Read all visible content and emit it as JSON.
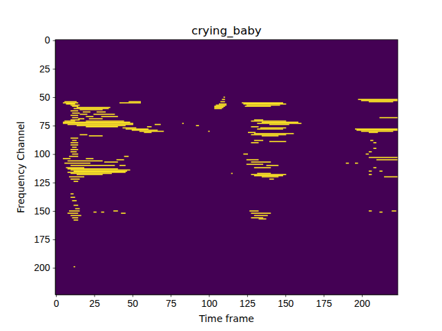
{
  "chart_data": {
    "type": "heatmap",
    "title": "crying_baby",
    "x_label": "Time frame",
    "y_label": "Frequency Channel",
    "xlim": [
      -0.5,
      223.5
    ],
    "ylim": [
      223.5,
      -0.5
    ],
    "xticks": [
      0,
      25,
      50,
      75,
      100,
      125,
      150,
      175,
      200
    ],
    "yticks": [
      0,
      25,
      50,
      75,
      100,
      125,
      150,
      175,
      200
    ],
    "color": "#fde725",
    "cells": [
      [
        54,
        6,
        13
      ],
      [
        55,
        5,
        14
      ],
      [
        56,
        7,
        12
      ],
      [
        55,
        42,
        55
      ],
      [
        54,
        48,
        55
      ],
      [
        59,
        14,
        35
      ],
      [
        60,
        12,
        34
      ],
      [
        61,
        16,
        30
      ],
      [
        63,
        18,
        22
      ],
      [
        63,
        27,
        32
      ],
      [
        65,
        16,
        20
      ],
      [
        65,
        25,
        38
      ],
      [
        67,
        20,
        24
      ],
      [
        67,
        30,
        40
      ],
      [
        69,
        15,
        18
      ],
      [
        69,
        22,
        30
      ],
      [
        71,
        6,
        12
      ],
      [
        71,
        20,
        44
      ],
      [
        72,
        5,
        48
      ],
      [
        73,
        5,
        50
      ],
      [
        74,
        8,
        50
      ],
      [
        75,
        14,
        45
      ],
      [
        76,
        20,
        40
      ],
      [
        77,
        44,
        52
      ],
      [
        78,
        46,
        60
      ],
      [
        79,
        50,
        66
      ],
      [
        80,
        55,
        70
      ],
      [
        81,
        58,
        62
      ],
      [
        83,
        16,
        20
      ],
      [
        84,
        22,
        30
      ],
      [
        86,
        10,
        14
      ],
      [
        88,
        11,
        13
      ],
      [
        90,
        10,
        14
      ],
      [
        92,
        10,
        14
      ],
      [
        94,
        11,
        13
      ],
      [
        96,
        10,
        14
      ],
      [
        98,
        10,
        13
      ],
      [
        100,
        11,
        14
      ],
      [
        102,
        9,
        14
      ],
      [
        104,
        5,
        9
      ],
      [
        104,
        20,
        24
      ],
      [
        106,
        8,
        30
      ],
      [
        107,
        32,
        40
      ],
      [
        108,
        6,
        22
      ],
      [
        110,
        10,
        38
      ],
      [
        110,
        42,
        45
      ],
      [
        112,
        7,
        18
      ],
      [
        113,
        8,
        40
      ],
      [
        114,
        10,
        48
      ],
      [
        115,
        12,
        46
      ],
      [
        116,
        8,
        45
      ],
      [
        117,
        10,
        36
      ],
      [
        118,
        14,
        30
      ],
      [
        120,
        9,
        18
      ],
      [
        122,
        10,
        15
      ],
      [
        124,
        12,
        14
      ],
      [
        57,
        10,
        15
      ],
      [
        58,
        11,
        14
      ],
      [
        62,
        10,
        14
      ],
      [
        64,
        11,
        15
      ],
      [
        66,
        10,
        14
      ],
      [
        68,
        11,
        14
      ],
      [
        70,
        10,
        15
      ],
      [
        135,
        10,
        11
      ],
      [
        138,
        10,
        12
      ],
      [
        141,
        11,
        13
      ],
      [
        145,
        12,
        14
      ],
      [
        148,
        13,
        15
      ],
      [
        150,
        9,
        15
      ],
      [
        152,
        8,
        14
      ],
      [
        154,
        10,
        16
      ],
      [
        156,
        11,
        14
      ],
      [
        158,
        12,
        14
      ],
      [
        151,
        25,
        26
      ],
      [
        151,
        30,
        31
      ],
      [
        150,
        38,
        40
      ],
      [
        152,
        43,
        45
      ],
      [
        199,
        12,
        12
      ],
      [
        102,
        45,
        47
      ],
      [
        105,
        40,
        44
      ],
      [
        76,
        60,
        62
      ],
      [
        74,
        65,
        68
      ],
      [
        50,
        110,
        110
      ],
      [
        52,
        109,
        110
      ],
      [
        54,
        108,
        110
      ],
      [
        56,
        107,
        111
      ],
      [
        57,
        105,
        111
      ],
      [
        58,
        104,
        110
      ],
      [
        59,
        104,
        109
      ],
      [
        60,
        104,
        108
      ],
      [
        73,
        83,
        83
      ],
      [
        75,
        92,
        93
      ],
      [
        80,
        100,
        100
      ],
      [
        117,
        115,
        115
      ],
      [
        55,
        122,
        148
      ],
      [
        56,
        123,
        150
      ],
      [
        57,
        125,
        146
      ],
      [
        58,
        124,
        140
      ],
      [
        70,
        130,
        135
      ],
      [
        71,
        128,
        150
      ],
      [
        72,
        135,
        158
      ],
      [
        73,
        132,
        160
      ],
      [
        74,
        140,
        152
      ],
      [
        76,
        128,
        132
      ],
      [
        77,
        134,
        150
      ],
      [
        78,
        132,
        148
      ],
      [
        81,
        126,
        130
      ],
      [
        82,
        130,
        155
      ],
      [
        83,
        128,
        150
      ],
      [
        84,
        135,
        145
      ],
      [
        88,
        130,
        135
      ],
      [
        90,
        128,
        132
      ],
      [
        89,
        140,
        150
      ],
      [
        100,
        123,
        125
      ],
      [
        105,
        125,
        132
      ],
      [
        107,
        128,
        140
      ],
      [
        109,
        125,
        135
      ],
      [
        110,
        138,
        145
      ],
      [
        112,
        130,
        140
      ],
      [
        117,
        132,
        140
      ],
      [
        118,
        128,
        150
      ],
      [
        119,
        130,
        148
      ],
      [
        120,
        135,
        145
      ],
      [
        122,
        140,
        142
      ],
      [
        150,
        127,
        132
      ],
      [
        152,
        128,
        140
      ],
      [
        154,
        130,
        138
      ],
      [
        156,
        128,
        135
      ],
      [
        157,
        133,
        137
      ],
      [
        52,
        198,
        223
      ],
      [
        53,
        200,
        223
      ],
      [
        54,
        205,
        220
      ],
      [
        68,
        212,
        223
      ],
      [
        78,
        196,
        223
      ],
      [
        79,
        197,
        223
      ],
      [
        80,
        200,
        220
      ],
      [
        81,
        205,
        210
      ],
      [
        88,
        206,
        207
      ],
      [
        90,
        208,
        209
      ],
      [
        95,
        208,
        209
      ],
      [
        98,
        205,
        206
      ],
      [
        103,
        205,
        223
      ],
      [
        105,
        210,
        223
      ],
      [
        108,
        190,
        191
      ],
      [
        108,
        196,
        197
      ],
      [
        112,
        208,
        209
      ],
      [
        115,
        205,
        206
      ],
      [
        115,
        212,
        213
      ],
      [
        120,
        215,
        223
      ],
      [
        118,
        205,
        206
      ],
      [
        150,
        205,
        206
      ],
      [
        151,
        212,
        213
      ],
      [
        150,
        220,
        222
      ],
      [
        100,
        203,
        204
      ]
    ]
  }
}
